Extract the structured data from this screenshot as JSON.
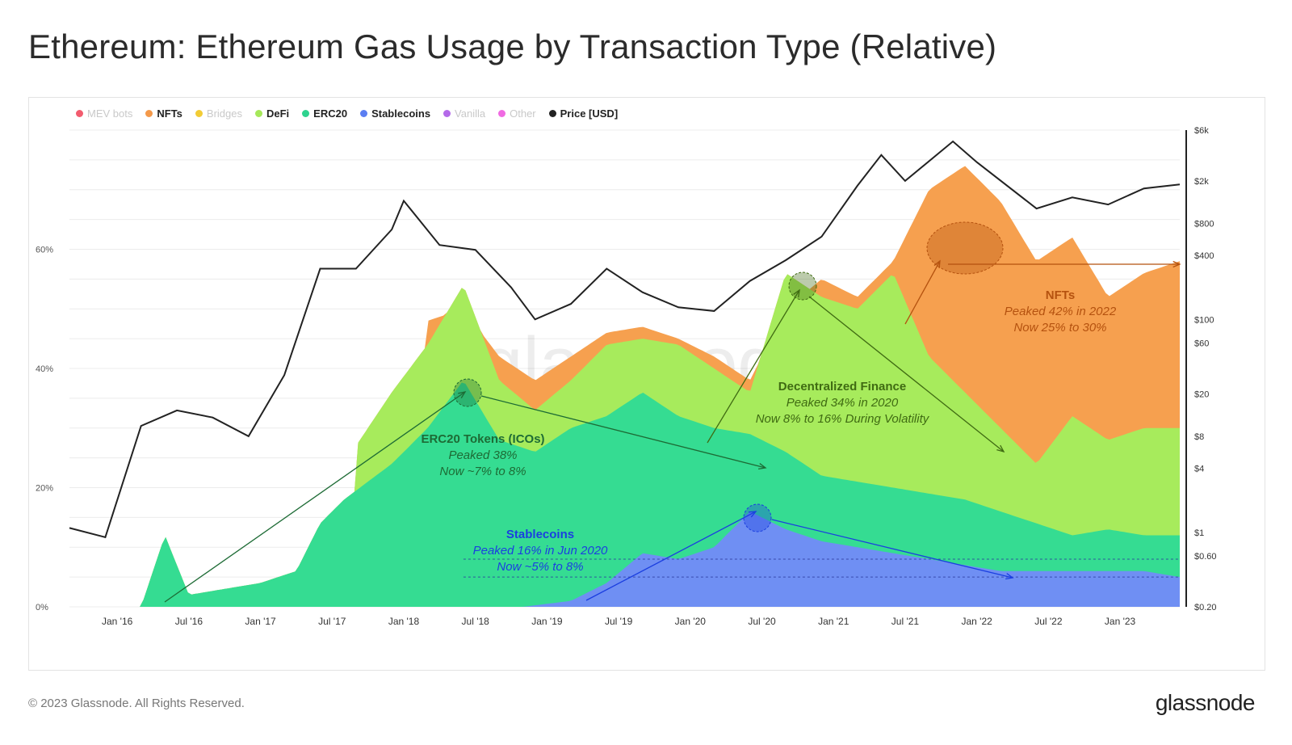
{
  "title": "Ethereum: Ethereum Gas Usage by Transaction Type (Relative)",
  "footer": {
    "copyright": "© 2023 Glassnode. All Rights Reserved.",
    "brand": "glassnode"
  },
  "watermark": "glassnode",
  "legend": [
    {
      "label": "MEV bots",
      "color": "#f25c6e",
      "active": false
    },
    {
      "label": "NFTs",
      "color": "#f4994a",
      "active": true
    },
    {
      "label": "Bridges",
      "color": "#f2cc35",
      "active": false
    },
    {
      "label": "DeFi",
      "color": "#a6e85a",
      "active": true
    },
    {
      "label": "ERC20",
      "color": "#2ed38f",
      "active": true
    },
    {
      "label": "Stablecoins",
      "color": "#5b7ef2",
      "active": true
    },
    {
      "label": "Vanilla",
      "color": "#b46ae9",
      "active": false
    },
    {
      "label": "Other",
      "color": "#f06ae2",
      "active": false
    },
    {
      "label": "Price [USD]",
      "color": "#222222",
      "active": true
    }
  ],
  "chart_data": {
    "type": "area",
    "stacked": true,
    "x_ticks": [
      "Jan '16",
      "Jul '16",
      "Jan '17",
      "Jul '17",
      "Jan '18",
      "Jul '18",
      "Jan '19",
      "Jul '19",
      "Jan '20",
      "Jul '20",
      "Jan '21",
      "Jul '21",
      "Jan '22",
      "Jul '22",
      "Jan '23"
    ],
    "y_left_ticks": [
      "0%",
      "20%",
      "40%",
      "60%"
    ],
    "y_left_range": [
      0,
      80
    ],
    "y_right_ticks": [
      "$0.20",
      "$0.60",
      "$1",
      "$4",
      "$8",
      "$20",
      "$60",
      "$100",
      "$400",
      "$800",
      "$2k",
      "$6k"
    ],
    "y_right_scale": "log",
    "y_right_range": [
      0.2,
      6000
    ],
    "x_range": [
      "2015-09",
      "2023-06"
    ],
    "series": [
      {
        "name": "Stablecoins",
        "color": "#6f8ff3",
        "x": [
          "2018-11",
          "2019-03",
          "2019-06",
          "2019-09",
          "2019-12",
          "2020-03",
          "2020-06",
          "2020-09",
          "2020-12",
          "2021-03",
          "2021-06",
          "2021-09",
          "2021-12",
          "2022-03",
          "2022-06",
          "2022-09",
          "2022-12",
          "2023-03",
          "2023-06"
        ],
        "values": [
          0,
          1,
          4,
          9,
          8,
          10,
          16,
          13,
          11,
          10,
          9,
          8,
          7,
          6,
          6,
          6,
          6,
          6,
          5
        ]
      },
      {
        "name": "ERC20",
        "color": "#35dc92",
        "x": [
          "2015-09",
          "2016-01",
          "2016-03",
          "2016-05",
          "2016-07",
          "2016-10",
          "2017-01",
          "2017-04",
          "2017-06",
          "2017-08",
          "2017-10",
          "2017-12",
          "2018-03",
          "2018-06",
          "2018-09",
          "2018-12",
          "2019-03",
          "2019-06",
          "2019-09",
          "2019-12",
          "2020-03",
          "2020-06",
          "2020-09",
          "2020-12",
          "2021-03",
          "2021-06",
          "2021-09",
          "2021-12",
          "2022-03",
          "2022-06",
          "2022-09",
          "2022-12",
          "2023-03",
          "2023-06"
        ],
        "values": [
          0,
          0,
          0,
          12,
          2,
          3,
          4,
          6,
          14,
          18,
          21,
          24,
          30,
          38,
          28,
          26,
          30,
          32,
          36,
          32,
          30,
          29,
          26,
          22,
          21,
          20,
          19,
          18,
          16,
          14,
          12,
          13,
          12,
          12
        ]
      },
      {
        "name": "DeFi",
        "color": "#a7eb5c",
        "x": [
          "2017-09",
          "2017-12",
          "2018-03",
          "2018-06",
          "2018-09",
          "2018-12",
          "2019-03",
          "2019-06",
          "2019-09",
          "2019-12",
          "2020-03",
          "2020-06",
          "2020-09",
          "2020-12",
          "2021-03",
          "2021-06",
          "2021-09",
          "2021-12",
          "2022-03",
          "2022-06",
          "2022-09",
          "2022-12",
          "2023-03",
          "2023-06"
        ],
        "values": [
          27,
          36,
          44,
          54,
          38,
          33,
          38,
          44,
          45,
          44,
          40,
          36,
          56,
          52,
          50,
          56,
          42,
          36,
          30,
          24,
          32,
          28,
          30,
          30
        ]
      },
      {
        "name": "NFTs",
        "color": "#f6a04f",
        "x": [
          "2018-03",
          "2018-06",
          "2018-09",
          "2018-12",
          "2019-03",
          "2019-06",
          "2019-09",
          "2019-12",
          "2020-03",
          "2020-06",
          "2020-09",
          "2020-12",
          "2021-03",
          "2021-06",
          "2021-09",
          "2021-12",
          "2022-03",
          "2022-06",
          "2022-09",
          "2022-12",
          "2023-03",
          "2023-06"
        ],
        "values": [
          48,
          50,
          42,
          38,
          42,
          46,
          47,
          45,
          42,
          38,
          50,
          55,
          52,
          58,
          70,
          74,
          68,
          58,
          62,
          52,
          56,
          58
        ]
      }
    ],
    "price_series": {
      "name": "Price [USD]",
      "color": "#222222",
      "x": [
        "2015-09",
        "2015-12",
        "2016-03",
        "2016-06",
        "2016-09",
        "2016-12",
        "2017-03",
        "2017-06",
        "2017-09",
        "2017-12",
        "2018-01",
        "2018-04",
        "2018-07",
        "2018-10",
        "2018-12",
        "2019-03",
        "2019-06",
        "2019-09",
        "2019-12",
        "2020-03",
        "2020-06",
        "2020-09",
        "2020-12",
        "2021-03",
        "2021-05",
        "2021-07",
        "2021-11",
        "2022-01",
        "2022-06",
        "2022-09",
        "2022-12",
        "2023-03",
        "2023-06"
      ],
      "values": [
        1.1,
        0.9,
        10,
        14,
        12,
        8,
        30,
        300,
        300,
        700,
        1300,
        500,
        450,
        200,
        100,
        140,
        300,
        180,
        130,
        120,
        230,
        360,
        600,
        1800,
        3500,
        2000,
        4700,
        3000,
        1100,
        1400,
        1200,
        1700,
        1850
      ]
    },
    "reference_lines": [
      {
        "series": "Stablecoins",
        "level": 5,
        "style": "dashed"
      },
      {
        "series": "Stablecoins",
        "level": 8,
        "style": "dashed"
      }
    ],
    "annotations": [
      {
        "id": "erc20",
        "title": "ERC20 Tokens (ICOs)",
        "line1": "Peaked 38%",
        "line2": "Now ~7% to 8%",
        "color": "#1d6b35"
      },
      {
        "id": "stable",
        "title": "Stablecoins",
        "line1": "Peaked 16% in Jun 2020",
        "line2": "Now ~5% to 8%",
        "color": "#1b3fe0"
      },
      {
        "id": "defi",
        "title": "Decentralized Finance",
        "line1": "Peaked 34% in 2020",
        "line2": "Now 8% to 16% During Volatility",
        "color": "#3f6b12"
      },
      {
        "id": "nft",
        "title": "NFTs",
        "line1": "Peaked 42% in 2022",
        "line2": "Now 25% to 30%",
        "color": "#b5520f"
      }
    ],
    "grid": true,
    "legend_position": "top-left"
  }
}
